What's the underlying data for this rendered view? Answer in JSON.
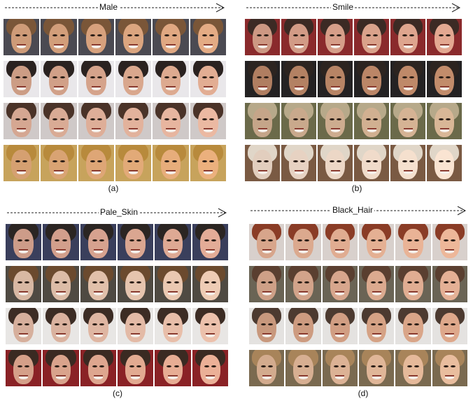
{
  "panels": [
    {
      "id": "a",
      "attribute": "Male",
      "caption": "(a)",
      "rows": [
        {
          "bg": "#4b4a52",
          "hair": "#7a5638",
          "skin": "#d9a37e"
        },
        {
          "bg": "#e9e7ea",
          "hair": "#2a2220",
          "skin": "#d7a58c"
        },
        {
          "bg": "#cfc9c8",
          "hair": "#4a3328",
          "skin": "#e0b09a"
        },
        {
          "bg": "#c7a35c",
          "hair": "#b88a3c",
          "skin": "#e0a877"
        }
      ]
    },
    {
      "id": "b",
      "attribute": "Smile",
      "caption": "(b)",
      "rows": [
        {
          "bg": "#8a2a2c",
          "hair": "#3c2a24",
          "skin": "#d8a08a"
        },
        {
          "bg": "#242223",
          "hair": "#2c2420",
          "skin": "#b98566"
        },
        {
          "bg": "#6b6a4a",
          "hair": "#b7a98a",
          "skin": "#cfae90"
        },
        {
          "bg": "#7a5a43",
          "hair": "#e0d6c8",
          "skin": "#eed9c8"
        }
      ]
    },
    {
      "id": "c",
      "attribute": "Pale_Skin",
      "caption": "(c)",
      "rows": [
        {
          "bg": "#3a3f5c",
          "hair": "#2b2522",
          "skin": "#d8a490"
        },
        {
          "bg": "#4f4a42",
          "hair": "#6b4a2e",
          "skin": "#e3c2ac"
        },
        {
          "bg": "#e8e6e4",
          "hair": "#3c2c24",
          "skin": "#e1b8a4"
        },
        {
          "bg": "#8a2226",
          "hair": "#3a2a22",
          "skin": "#e0a890"
        }
      ]
    },
    {
      "id": "d",
      "attribute": "Black_Hair",
      "caption": "(d)",
      "rows": [
        {
          "bg": "#d8d0cc",
          "hair": "#8a3c26",
          "skin": "#e2ae92"
        },
        {
          "bg": "#6a6455",
          "hair": "#5a3f30",
          "skin": "#d9a88e"
        },
        {
          "bg": "#e4e2e0",
          "hair": "#4c3a30",
          "skin": "#d3a084"
        },
        {
          "bg": "#7a6a50",
          "hair": "#a8845a",
          "skin": "#deb496"
        }
      ]
    }
  ]
}
